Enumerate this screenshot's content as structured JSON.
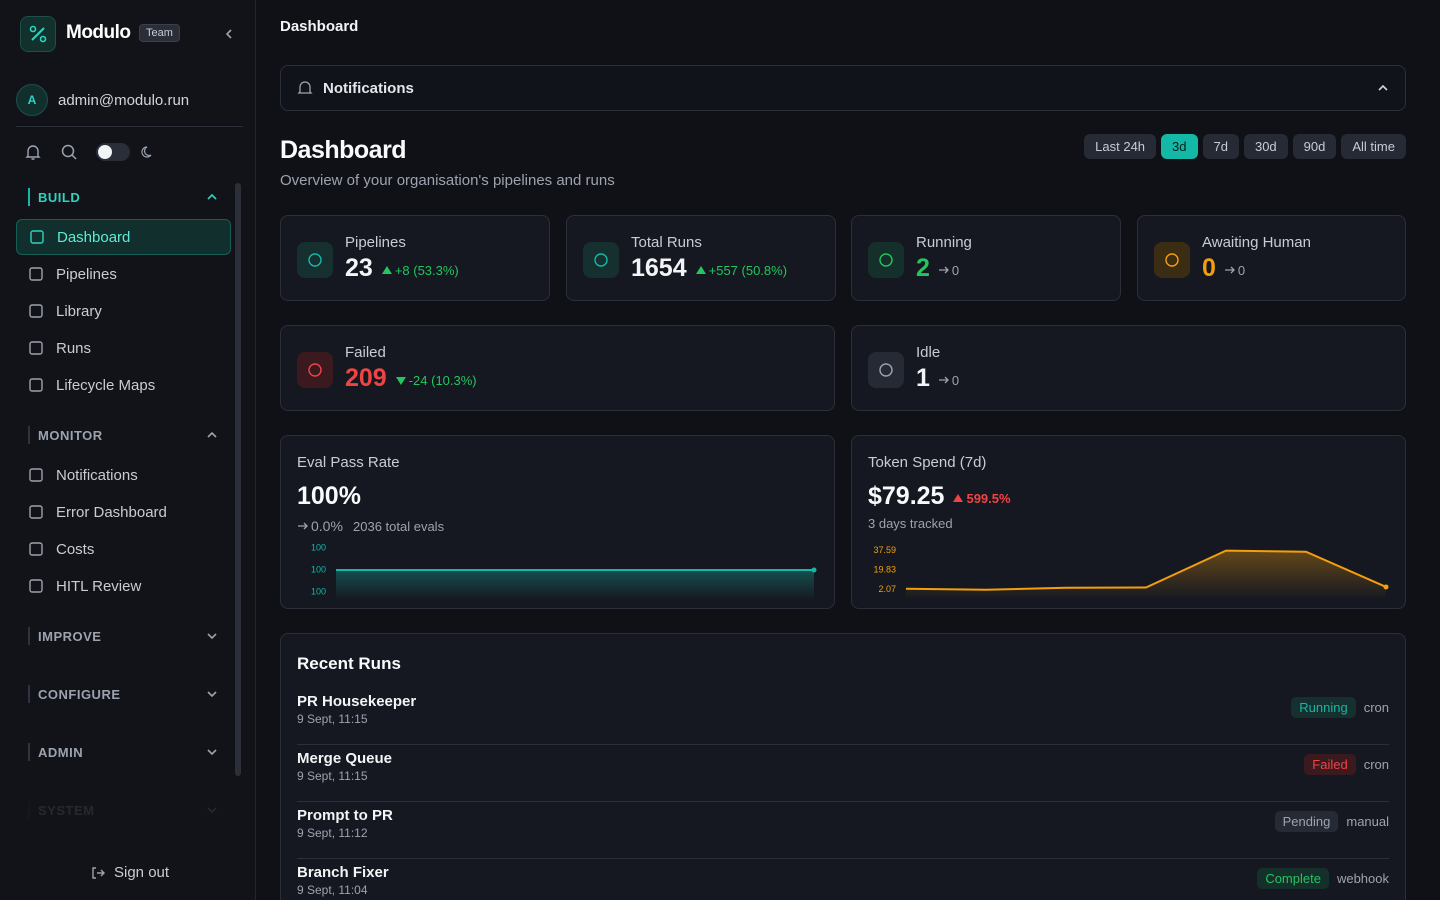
{
  "sidebar": {
    "brand": "Modulo",
    "plan": "Team",
    "avatar": "A",
    "email": "admin@modulo.run",
    "sections": [
      {
        "title": "BUILD",
        "expanded": true,
        "active_item": 0,
        "items": [
          "Dashboard",
          "Pipelines",
          "Library",
          "Runs",
          "Lifecycle Maps"
        ]
      },
      {
        "title": "MONITOR",
        "expanded": true,
        "items": [
          "Notifications",
          "Error Dashboard",
          "Costs",
          "HITL Review"
        ]
      },
      {
        "title": "IMPROVE",
        "expanded": false,
        "items": []
      },
      {
        "title": "CONFIGURE",
        "expanded": false,
        "items": []
      },
      {
        "title": "ADMIN",
        "expanded": false,
        "items": []
      },
      {
        "title": "SYSTEM",
        "expanded": false,
        "items": []
      }
    ],
    "sign_out": "Sign out"
  },
  "breadcrumb": "Dashboard",
  "notifications": {
    "title": "Notifications",
    "expanded": true
  },
  "header": {
    "title": "Dashboard",
    "subtitle": "Overview of your organisation's pipelines and runs"
  },
  "ranges": {
    "options": [
      "Last 24h",
      "3d",
      "7d",
      "30d",
      "90d",
      "All time"
    ],
    "active": 1
  },
  "stats": [
    {
      "label": "Pipelines",
      "value": "23",
      "delta": "+8 (53.3%)",
      "trend": "up",
      "tone": "white",
      "icon": "teal"
    },
    {
      "label": "Total Runs",
      "value": "1654",
      "delta": "+557 (50.8%)",
      "trend": "up",
      "tone": "white",
      "icon": "teal"
    },
    {
      "label": "Running",
      "value": "2",
      "delta": "0",
      "trend": "flat",
      "tone": "green",
      "icon": "green"
    },
    {
      "label": "Awaiting Human",
      "value": "0",
      "delta": "0",
      "trend": "flat",
      "tone": "amber",
      "icon": "amber"
    },
    {
      "label": "Failed",
      "value": "209",
      "delta": "-24 (10.3%)",
      "trend": "down",
      "tone": "red",
      "icon": "red"
    },
    {
      "label": "Idle",
      "value": "1",
      "delta": "0",
      "trend": "flat",
      "tone": "white",
      "icon": "grey"
    }
  ],
  "metrics": [
    {
      "title": "Eval Pass Rate",
      "value": "100%",
      "delta": "0.0%",
      "trend": "flat",
      "note": "2036 total evals",
      "chart": {
        "type": "line",
        "color": "#14b8a6",
        "values": [
          100,
          100,
          100
        ],
        "ylim": [
          99.6,
          100.4
        ],
        "yticks": [
          {
            "value": 100.4,
            "label": "100"
          },
          100,
          {
            "value": 99.6,
            "label": "100"
          }
        ]
      }
    },
    {
      "title": "Token Spend (7d)",
      "value": "$79.25",
      "delta": "599.5%",
      "trend": "up-bad",
      "note": "3 days tracked",
      "chart": {
        "type": "line",
        "color": "#f59e0b",
        "values": [
          2.9,
          2.07,
          3.9,
          4.1,
          37.59,
          36.6,
          4.6
        ],
        "ylim": [
          0,
          40
        ],
        "yticks": [
          37.59,
          19.83,
          2.07
        ]
      }
    }
  ],
  "runs": {
    "title": "Recent Runs",
    "rows": [
      {
        "name": "PR Housekeeper",
        "time": "9 Sept, 11:15",
        "status": "Running",
        "tone": "teal",
        "trigger": "cron"
      },
      {
        "name": "Merge Queue",
        "time": "9 Sept, 11:15",
        "status": "Failed",
        "tone": "red",
        "trigger": "cron"
      },
      {
        "name": "Prompt to PR",
        "time": "9 Sept, 11:12",
        "status": "Pending",
        "tone": "grey",
        "trigger": "manual"
      },
      {
        "name": "Branch Fixer",
        "time": "9 Sept, 11:04",
        "status": "Complete",
        "tone": "green",
        "trigger": "webhook"
      }
    ]
  }
}
